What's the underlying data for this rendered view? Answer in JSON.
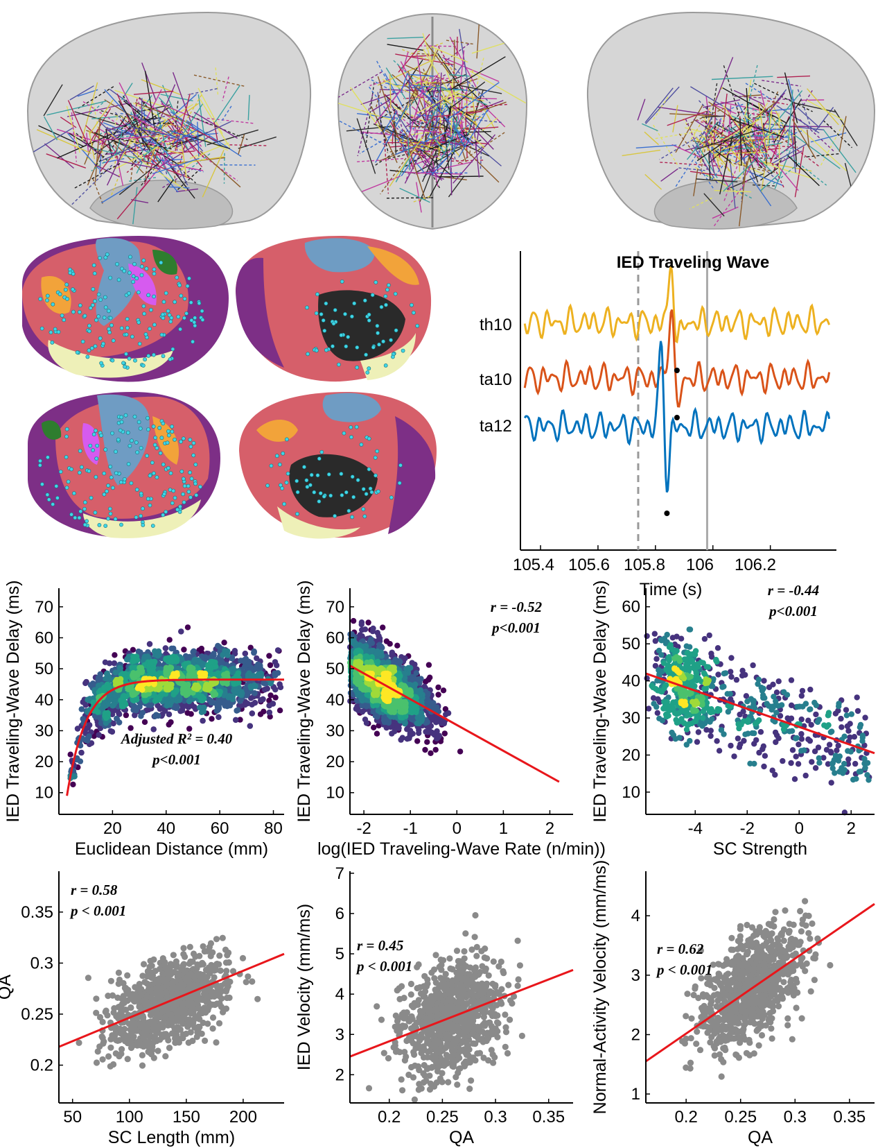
{
  "figure": {
    "colors": {
      "glass_brain": "#c8c8c8",
      "default_mode": "#d65f6a",
      "somatomotor": "#6f9cc3",
      "ventral_attention": "#d65bef",
      "frontoparietal": "#f2a33a",
      "limbic": "#eef0b8",
      "visual": "#7d2f86",
      "dorsal_attention": "#2e7d2e",
      "contacts": "#3fd6e6",
      "fit_line": "#e8161b",
      "gray_points": "#8a8a8a"
    }
  },
  "chart_data": [
    {
      "id": "ied-wave",
      "type": "line",
      "title": "IED Traveling Wave",
      "xlabel": "Time (s)",
      "xlim": [
        105.33,
        106.43
      ],
      "xticks": [
        "105.4",
        "105.6",
        "105.8",
        "106",
        "106.2"
      ],
      "xtick_values": [
        105.4,
        105.6,
        105.8,
        106.0,
        106.2
      ],
      "markers": {
        "dashed": 105.74,
        "solid": 105.98
      },
      "series": [
        {
          "name": "th10",
          "color": "#edb120",
          "peak_time": 105.875
        },
        {
          "name": "ta10",
          "color": "#d95319",
          "peak_time": 105.875
        },
        {
          "name": "ta12",
          "color": "#0072bd",
          "peak_time": 105.84
        }
      ]
    },
    {
      "id": "dist-delay",
      "type": "scatter",
      "xlabel": "Euclidean Distance (mm)",
      "ylabel": "IED Traveling-Wave Delay (ms)",
      "xlim": [
        0,
        84
      ],
      "ylim": [
        3,
        76
      ],
      "xticks": [
        20,
        40,
        60,
        80
      ],
      "yticks": [
        10,
        20,
        30,
        40,
        50,
        60,
        70
      ],
      "stat_lines": [
        "Adjusted R² = 0.40",
        "p<0.001"
      ],
      "fit": {
        "model": "saturating",
        "plateau": 46.5,
        "start": 9,
        "tau": 7
      }
    },
    {
      "id": "rate-delay",
      "type": "scatter",
      "xlabel": "log(IED Traveling-Wave Rate (n/min))",
      "ylabel": "IED Traveling-Wave Delay (ms)",
      "xlim": [
        -2.3,
        2.5
      ],
      "ylim": [
        3,
        76
      ],
      "xticks": [
        -2,
        -1,
        0,
        1,
        2
      ],
      "yticks": [
        10,
        20,
        30,
        40,
        50,
        60,
        70
      ],
      "stat_lines": [
        "r = -0.52",
        "p<0.001"
      ],
      "fit": {
        "x0": -2.3,
        "y0": 51,
        "x1": 2.2,
        "y1": 13.5
      }
    },
    {
      "id": "sc-delay",
      "type": "scatter",
      "xlabel": "SC Strength",
      "ylabel": "IED Traveling-Wave Delay (ms)",
      "xlim": [
        -5.9,
        2.9
      ],
      "ylim": [
        4,
        65
      ],
      "xticks": [
        -4,
        -2,
        0,
        2
      ],
      "yticks": [
        10,
        20,
        30,
        40,
        50,
        60
      ],
      "stat_lines": [
        "r = -0.44",
        "p<0.001"
      ],
      "fit": {
        "x0": -5.9,
        "y0": 42,
        "x1": 2.9,
        "y1": 20.5
      }
    },
    {
      "id": "sclen-qa",
      "type": "scatter",
      "xlabel": "SC Length (mm)",
      "ylabel": "QA",
      "xlim": [
        38,
        236
      ],
      "ylim": [
        0.163,
        0.39
      ],
      "xticks": [
        50,
        100,
        150,
        200
      ],
      "yticks": [
        0.2,
        0.25,
        0.3,
        0.35
      ],
      "stat_lines": [
        "r = 0.58",
        "p < 0.001"
      ],
      "fit": {
        "x0": 38,
        "y0": 0.218,
        "x1": 236,
        "y1": 0.309
      }
    },
    {
      "id": "qa-ied",
      "type": "scatter",
      "xlabel": "QA",
      "ylabel": "IED Velocity (mm/ms)",
      "xlim": [
        0.163,
        0.373
      ],
      "ylim": [
        1.3,
        7.05
      ],
      "xticks": [
        0.2,
        0.25,
        0.3,
        0.35
      ],
      "yticks": [
        2,
        3,
        4,
        5,
        6,
        7
      ],
      "stat_lines": [
        "r = 0.45",
        "p < 0.001"
      ],
      "fit": {
        "x0": 0.163,
        "y0": 2.45,
        "x1": 0.373,
        "y1": 4.6
      }
    },
    {
      "id": "qa-normal",
      "type": "scatter",
      "xlabel": "QA",
      "ylabel": "Normal-Activity Velocity (mm/ms)",
      "xlim": [
        0.163,
        0.373
      ],
      "ylim": [
        0.85,
        4.75
      ],
      "xticks": [
        0.2,
        0.25,
        0.3,
        0.35
      ],
      "yticks": [
        1,
        2,
        3,
        4
      ],
      "stat_lines": [
        "r = 0.62",
        "p < 0.001"
      ],
      "fit": {
        "x0": 0.163,
        "y0": 1.55,
        "x1": 0.373,
        "y1": 4.2
      }
    }
  ]
}
